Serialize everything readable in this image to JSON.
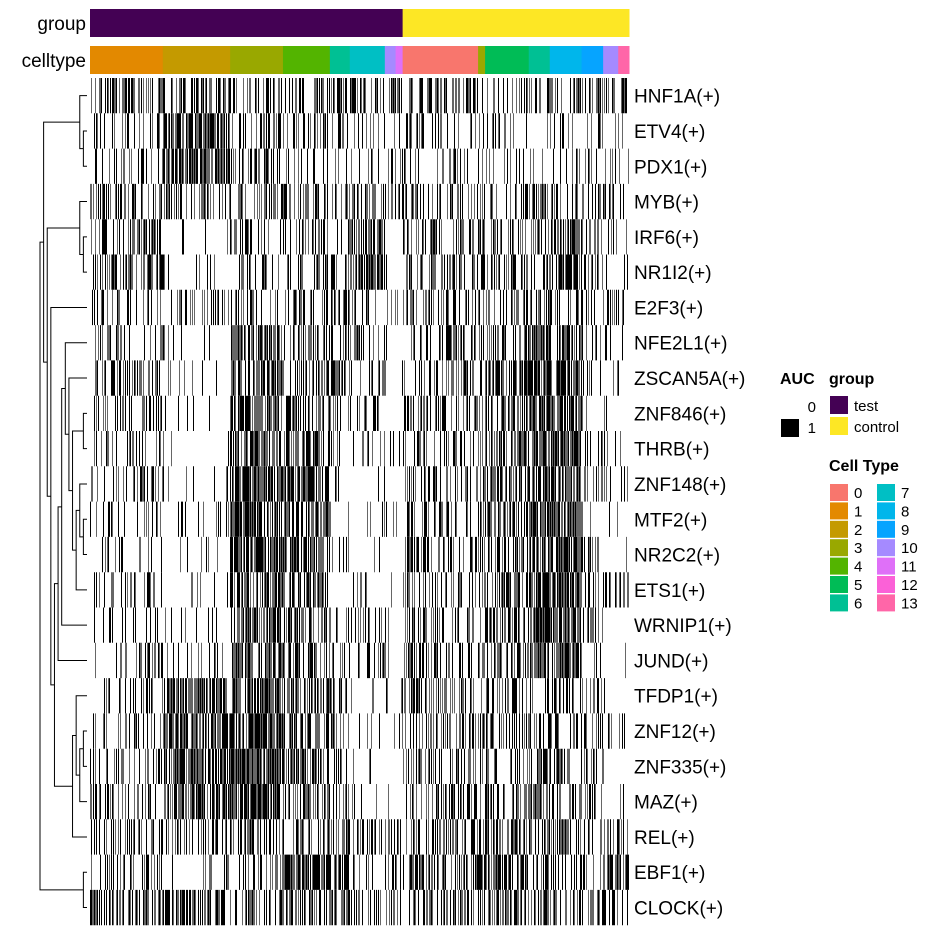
{
  "chart_data": {
    "type": "heatmap",
    "annotation_labels": {
      "group": "group",
      "celltype": "celltype"
    },
    "rows": [
      "HNF1A(+)",
      "ETV4(+)",
      "PDX1(+)",
      "MYB(+)",
      "IRF6(+)",
      "NR1I2(+)",
      "E2F3(+)",
      "NFE2L1(+)",
      "ZSCAN5A(+)",
      "ZNF846(+)",
      "THRB(+)",
      "ZNF148(+)",
      "MTF2(+)",
      "NR2C2(+)",
      "ETS1(+)",
      "WRNIP1(+)",
      "JUND(+)",
      "TFDP1(+)",
      "ZNF12(+)",
      "ZNF335(+)",
      "MAZ(+)",
      "REL(+)",
      "EBF1(+)",
      "CLOCK(+)"
    ],
    "value_range": [
      0,
      1
    ],
    "group_segments": [
      {
        "name": "test",
        "fraction": 0.58
      },
      {
        "name": "control",
        "fraction": 0.42
      }
    ],
    "celltype_segments": [
      {
        "type": "1",
        "fraction": 0.135
      },
      {
        "type": "2",
        "fraction": 0.125
      },
      {
        "type": "3",
        "fraction": 0.098
      },
      {
        "type": "4",
        "fraction": 0.087
      },
      {
        "type": "6",
        "fraction": 0.037
      },
      {
        "type": "7",
        "fraction": 0.065
      },
      {
        "type": "10",
        "fraction": 0.02
      },
      {
        "type": "11",
        "fraction": 0.013
      },
      {
        "type": "0",
        "fraction": 0.14
      },
      {
        "type": "3",
        "fraction": 0.013
      },
      {
        "type": "5",
        "fraction": 0.081
      },
      {
        "type": "6",
        "fraction": 0.039
      },
      {
        "type": "8",
        "fraction": 0.059
      },
      {
        "type": "9",
        "fraction": 0.04
      },
      {
        "type": "10",
        "fraction": 0.028
      },
      {
        "type": "13",
        "fraction": 0.02
      }
    ],
    "block_density": [
      [
        0.55,
        0.5,
        0.45,
        0.55,
        0.5,
        0.45,
        0.45,
        0.4,
        0.45,
        0.4,
        0.45,
        0.4,
        0.45,
        0.4,
        0.45,
        0.4
      ],
      [
        0.25,
        0.85,
        0.4,
        0.4,
        0.2,
        0.2,
        0.2,
        0.2,
        0.2,
        0.2,
        0.2,
        0.2,
        0.3,
        0.3,
        0.2,
        0.2
      ],
      [
        0.2,
        0.8,
        0.4,
        0.4,
        0.2,
        0.2,
        0.2,
        0.2,
        0.2,
        0.2,
        0.2,
        0.2,
        0.2,
        0.2,
        0.2,
        0.2
      ],
      [
        0.45,
        0.4,
        0.45,
        0.45,
        0.45,
        0.45,
        0.4,
        0.4,
        0.45,
        0.4,
        0.4,
        0.4,
        0.45,
        0.4,
        0.4,
        0.4
      ],
      [
        0.4,
        0.1,
        0.3,
        0.35,
        0.4,
        0.7,
        0.1,
        0.1,
        0.45,
        0.4,
        0.35,
        0.35,
        0.7,
        0.4,
        0.1,
        0.1
      ],
      [
        0.45,
        0.1,
        0.3,
        0.35,
        0.5,
        0.7,
        0.1,
        0.1,
        0.4,
        0.4,
        0.35,
        0.35,
        0.65,
        0.4,
        0.1,
        0.1
      ],
      [
        0.4,
        0.35,
        0.35,
        0.4,
        0.4,
        0.35,
        0.35,
        0.35,
        0.4,
        0.35,
        0.35,
        0.35,
        0.4,
        0.35,
        0.35,
        0.35
      ],
      [
        0.3,
        0.1,
        0.7,
        0.35,
        0.35,
        0.3,
        0.1,
        0.1,
        0.4,
        0.4,
        0.5,
        0.8,
        0.7,
        0.3,
        0.1,
        0.1
      ],
      [
        0.3,
        0.1,
        0.7,
        0.45,
        0.4,
        0.3,
        0.1,
        0.1,
        0.4,
        0.45,
        0.55,
        0.8,
        0.75,
        0.35,
        0.1,
        0.1
      ],
      [
        0.25,
        0.1,
        0.75,
        0.45,
        0.35,
        0.3,
        0.1,
        0.1,
        0.4,
        0.45,
        0.55,
        0.8,
        0.7,
        0.35,
        0.1,
        0.1
      ],
      [
        0.25,
        0.1,
        0.8,
        0.7,
        0.1,
        0.1,
        0.1,
        0.1,
        0.35,
        0.45,
        0.55,
        0.8,
        0.85,
        0.35,
        0.1,
        0.1
      ],
      [
        0.3,
        0.1,
        0.8,
        0.75,
        0.1,
        0.1,
        0.1,
        0.1,
        0.4,
        0.5,
        0.55,
        0.8,
        0.8,
        0.35,
        0.1,
        0.1
      ],
      [
        0.25,
        0.1,
        0.8,
        0.7,
        0.15,
        0.1,
        0.1,
        0.1,
        0.35,
        0.5,
        0.55,
        0.8,
        0.8,
        0.35,
        0.1,
        0.1
      ],
      [
        0.25,
        0.1,
        0.8,
        0.7,
        0.15,
        0.1,
        0.1,
        0.1,
        0.4,
        0.5,
        0.55,
        0.8,
        0.8,
        0.35,
        0.1,
        0.1
      ],
      [
        0.3,
        0.1,
        0.75,
        0.6,
        0.1,
        0.1,
        0.1,
        0.1,
        0.35,
        0.4,
        0.5,
        0.75,
        0.8,
        0.35,
        0.5,
        0.75
      ],
      [
        0.2,
        0.1,
        0.7,
        0.5,
        0.4,
        0.35,
        0.1,
        0.1,
        0.4,
        0.45,
        0.55,
        0.85,
        0.85,
        0.35,
        0.1,
        0.1
      ],
      [
        0.3,
        0.1,
        0.65,
        0.55,
        0.35,
        0.3,
        0.1,
        0.1,
        0.4,
        0.45,
        0.5,
        0.8,
        0.8,
        0.35,
        0.1,
        0.1
      ],
      [
        0.3,
        0.75,
        0.8,
        0.6,
        0.4,
        0.1,
        0.1,
        0.1,
        0.4,
        0.35,
        0.4,
        0.45,
        0.4,
        0.4,
        0.1,
        0.1
      ],
      [
        0.25,
        0.7,
        0.85,
        0.6,
        0.35,
        0.1,
        0.1,
        0.1,
        0.4,
        0.35,
        0.4,
        0.45,
        0.4,
        0.4,
        0.1,
        0.1
      ],
      [
        0.3,
        0.75,
        0.85,
        0.6,
        0.4,
        0.1,
        0.1,
        0.1,
        0.35,
        0.4,
        0.4,
        0.45,
        0.4,
        0.4,
        0.1,
        0.1
      ],
      [
        0.3,
        0.75,
        0.85,
        0.55,
        0.4,
        0.1,
        0.1,
        0.1,
        0.35,
        0.35,
        0.4,
        0.45,
        0.35,
        0.35,
        0.1,
        0.1
      ],
      [
        0.4,
        0.35,
        0.4,
        0.45,
        0.4,
        0.4,
        0.35,
        0.35,
        0.45,
        0.45,
        0.45,
        0.45,
        0.45,
        0.45,
        0.4,
        0.4
      ],
      [
        0.3,
        0.2,
        0.4,
        0.75,
        0.35,
        0.2,
        0.2,
        0.2,
        0.6,
        0.55,
        0.55,
        0.45,
        0.35,
        0.4,
        0.85,
        0.85
      ],
      [
        0.55,
        0.55,
        0.5,
        0.55,
        0.55,
        0.5,
        0.5,
        0.5,
        0.55,
        0.5,
        0.55,
        0.55,
        0.5,
        0.55,
        0.5,
        0.55
      ]
    ],
    "dendrogram_merges": [
      [
        1,
        2
      ],
      [
        0,
        24
      ],
      [
        4,
        5
      ],
      [
        9,
        10
      ],
      [
        12,
        13
      ],
      [
        28,
        11
      ],
      [
        29,
        14
      ],
      [
        27,
        30
      ],
      [
        8,
        31
      ],
      [
        7,
        32
      ],
      [
        33,
        15
      ],
      [
        34,
        16
      ],
      [
        18,
        19
      ],
      [
        36,
        20
      ],
      [
        17,
        37
      ],
      [
        38,
        21
      ],
      [
        26,
        3
      ],
      [
        35,
        39
      ],
      [
        41,
        6
      ],
      [
        22,
        23
      ],
      [
        40,
        42
      ],
      [
        25,
        44
      ],
      [
        45,
        43
      ]
    ],
    "legend": {
      "auc_title": "AUC",
      "auc_labels": [
        "0",
        "1"
      ],
      "group_title": "group",
      "group_items": [
        {
          "label": "test",
          "color": "#440154"
        },
        {
          "label": "control",
          "color": "#FDE725"
        }
      ],
      "celltype_title": "Cell Type",
      "celltype_items": [
        {
          "label": "0",
          "color": "#F8766D"
        },
        {
          "label": "1",
          "color": "#E38900"
        },
        {
          "label": "2",
          "color": "#C49A00"
        },
        {
          "label": "3",
          "color": "#99A800"
        },
        {
          "label": "4",
          "color": "#53B400"
        },
        {
          "label": "5",
          "color": "#00BC56"
        },
        {
          "label": "6",
          "color": "#00C094"
        },
        {
          "label": "7",
          "color": "#00BFC4"
        },
        {
          "label": "8",
          "color": "#00B6EB"
        },
        {
          "label": "9",
          "color": "#06A4FF"
        },
        {
          "label": "10",
          "color": "#A58AFF"
        },
        {
          "label": "11",
          "color": "#DF70F8"
        },
        {
          "label": "12",
          "color": "#FB61D7"
        },
        {
          "label": "13",
          "color": "#FF66A8"
        }
      ]
    }
  }
}
